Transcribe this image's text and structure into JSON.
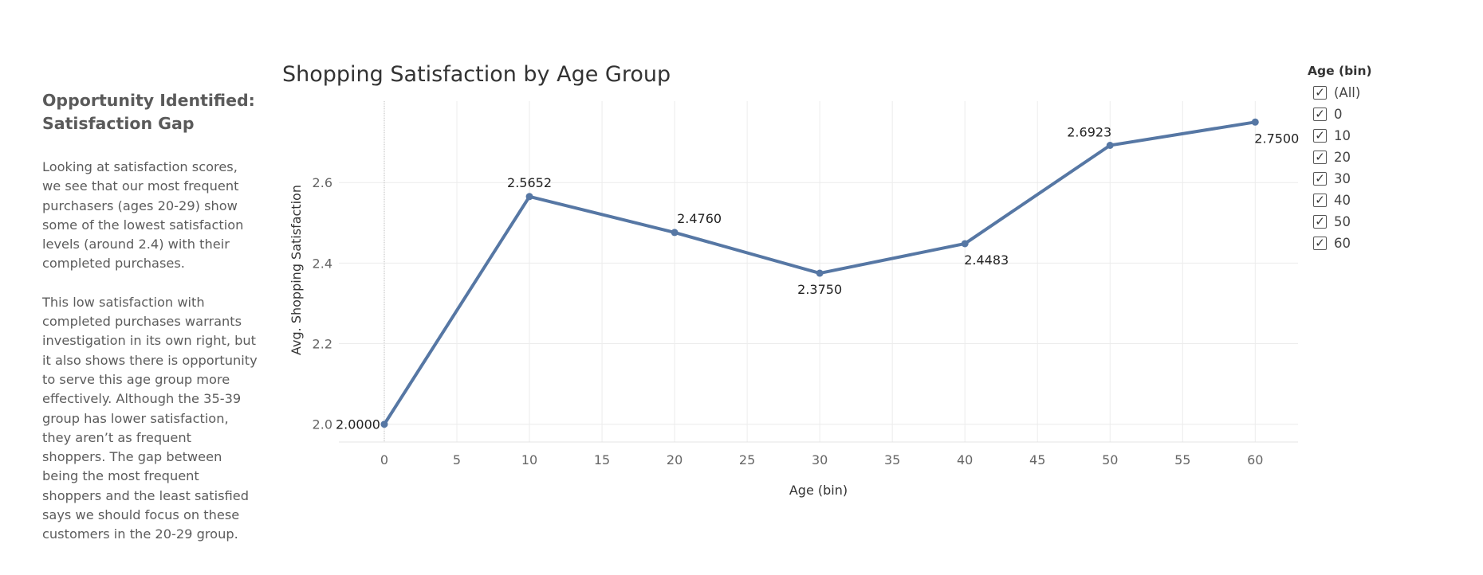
{
  "story": {
    "heading": "Opportunity Identified: Satisfaction Gap",
    "paragraphs": [
      "Looking at satisfaction scores, we see that our most frequent purchasers (ages 20-29) show some of the lowest satisfaction levels (around 2.4) with their completed purchases.",
      "This low satisfaction with completed purchases warrants investigation in its own right, but it also shows there is opportunity to serve this age group more effectively. Although the 35-39 group has lower satisfaction, they aren’t as frequent shoppers. The gap between being the most frequent shoppers and the least satisfied says we should focus on these customers in the 20-29 group."
    ]
  },
  "chart_data": {
    "type": "line",
    "title": "Shopping Satisfaction by Age Group",
    "xlabel": "Age (bin)",
    "ylabel": "Avg. Shopping Satisfaction",
    "x": [
      0,
      10,
      20,
      30,
      40,
      50,
      60
    ],
    "series": [
      {
        "values": [
          2.0,
          2.5652,
          2.476,
          2.375,
          2.4483,
          2.6923,
          2.75
        ]
      }
    ],
    "data_labels": [
      "2.0000",
      "2.5652",
      "2.4760",
      "2.3750",
      "2.4483",
      "2.6923",
      "2.7500"
    ],
    "x_ticks": [
      0,
      5,
      10,
      15,
      20,
      25,
      30,
      35,
      40,
      45,
      50,
      55,
      60
    ],
    "y_ticks": [
      2.0,
      2.2,
      2.4,
      2.6
    ],
    "y_tick_labels": [
      "2.0",
      "2.2",
      "2.4",
      "2.6"
    ],
    "xlim": [
      -3.13,
      62.95
    ],
    "ylim": [
      1.956,
      2.802
    ],
    "grid": true,
    "line_color": "#5677a4",
    "legend_placement": "right"
  },
  "filter": {
    "title": "Age (bin)",
    "items": [
      {
        "label": "(All)",
        "checked": true
      },
      {
        "label": "0",
        "checked": true
      },
      {
        "label": "10",
        "checked": true
      },
      {
        "label": "20",
        "checked": true
      },
      {
        "label": "30",
        "checked": true
      },
      {
        "label": "40",
        "checked": true
      },
      {
        "label": "50",
        "checked": true
      },
      {
        "label": "60",
        "checked": true
      }
    ],
    "check_glyph": "✓"
  }
}
